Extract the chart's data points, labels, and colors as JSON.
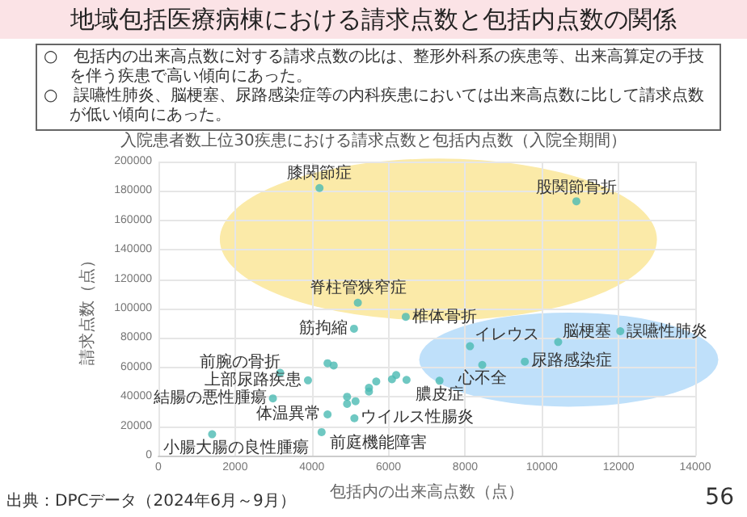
{
  "chart_data": {
    "type": "scatter",
    "title": "地域包括医療病棟における請求点数と包括内点数の関係",
    "subtitle": "入院患者数上位30疾患における請求点数と包括内点数（入院全期間）",
    "xlabel": "包括内の出来高点数（点）",
    "ylabel": "請求点数（点）",
    "x": [
      4200,
      10900,
      5200,
      6450,
      5100,
      3175,
      4410,
      4570,
      3900,
      2985,
      4410,
      4920,
      4920,
      5140,
      5110,
      4255,
      1400,
      5490,
      5490,
      5680,
      6090,
      6200,
      6470,
      7330,
      8125,
      8445,
      9555,
      10425,
      12045
    ],
    "values": [
      182000,
      173000,
      104000,
      94400,
      86300,
      56300,
      62800,
      61300,
      51200,
      38900,
      28000,
      40000,
      35200,
      37000,
      25400,
      16000,
      14500,
      46100,
      43600,
      50400,
      51900,
      54800,
      51500,
      50900,
      74400,
      61700,
      63900,
      77300,
      84600
    ],
    "color": "#4bbab3",
    "xlim": [
      0,
      14000
    ],
    "xticks": [
      0,
      2000,
      4000,
      6000,
      8000,
      10000,
      12000,
      14000
    ],
    "ylim": [
      0,
      200000
    ],
    "yticks": [
      0,
      20000,
      40000,
      60000,
      80000,
      100000,
      120000,
      140000,
      160000,
      180000,
      200000
    ],
    "grid": true,
    "marker": "circle",
    "annotations": [
      "○　包括内の出来高点数に対する請求点数の比は、整形外科系の疾患等、出来高算定の手技を伴う疾患で高い傾向にあった。",
      "○　誤嚥性肺炎、脳梗塞、尿路感染症等の内科疾患においては出来高点数に比して請求点数が低い傾向にあった。",
      "出典：DPCデータ（2024年6月～9月）",
      "56",
      {
        "text": "膝関節症",
        "x": 4200,
        "y": 182000
      },
      {
        "text": "股関節骨折",
        "x": 10900,
        "y": 173000
      },
      {
        "text": "脊柱管狭窄症",
        "x": 5200,
        "y": 104000
      },
      {
        "text": "椎体骨折",
        "x": 6450,
        "y": 94400
      },
      {
        "text": "筋拘縮",
        "x": 5100,
        "y": 86300
      },
      {
        "text": "前腕の骨折",
        "x": 3175,
        "y": 56300
      },
      {
        "text": "上部尿路疾患",
        "x": 3900,
        "y": 51200
      },
      {
        "text": "結腸の悪性腫瘍",
        "x": 2985,
        "y": 38900
      },
      {
        "text": "体温異常",
        "x": 4410,
        "y": 28000
      },
      {
        "text": "ウイルス性腸炎",
        "x": 5110,
        "y": 25400
      },
      {
        "text": "前庭機能障害",
        "x": 4255,
        "y": 16000
      },
      {
        "text": "小腸大腸の良性腫瘍",
        "x": 1400,
        "y": 14500
      },
      {
        "text": "膿皮症",
        "x": 7330,
        "y": 50900
      },
      {
        "text": "イレウス",
        "x": 8125,
        "y": 74400
      },
      {
        "text": "心不全",
        "x": 8445,
        "y": 61700
      },
      {
        "text": "尿路感染症",
        "x": 9555,
        "y": 63900
      },
      {
        "text": "脳梗塞",
        "x": 10425,
        "y": 77300
      },
      {
        "text": "誤嚥性肺炎",
        "x": 12045,
        "y": 84600
      }
    ]
  }
}
